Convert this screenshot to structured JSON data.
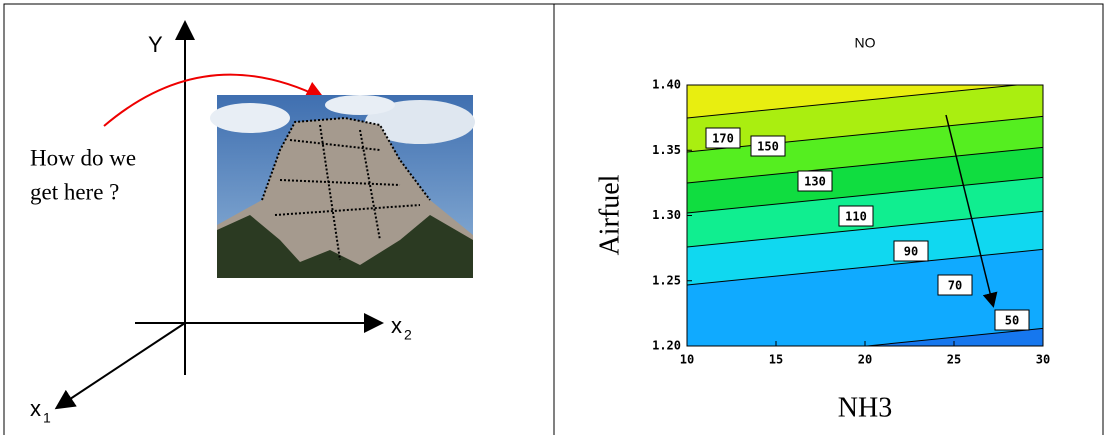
{
  "diagram": {
    "y_axis_label": "Y",
    "x2_axis_label": {
      "text": "x",
      "subscript": "2"
    },
    "x1_axis_label": {
      "text": "x",
      "subscript": "1"
    },
    "question": [
      "How do we",
      "get here ?"
    ]
  },
  "chart_data": {
    "type": "contour",
    "title": "NO",
    "x_label": "NH3",
    "y_label": "Airfuel",
    "xlim": [
      10,
      30
    ],
    "ylim": [
      1.2,
      1.4
    ],
    "xticks": [
      10,
      15,
      20,
      25,
      30
    ],
    "yticks": [
      {
        "value": 1.2,
        "label": "1.20"
      },
      {
        "value": 1.25,
        "label": "1.25"
      },
      {
        "value": 1.3,
        "label": "1.30"
      },
      {
        "value": 1.35,
        "label": "1.35"
      },
      {
        "value": 1.4,
        "label": "1.40"
      }
    ],
    "levels": [
      170,
      150,
      130,
      110,
      90,
      70,
      50
    ],
    "band_colors": [
      "#e8ee10",
      "#aaee10",
      "#55ee20",
      "#10dd40",
      "#10ee90",
      "#10d8f0",
      "#10aaff",
      "#1677ee"
    ]
  }
}
